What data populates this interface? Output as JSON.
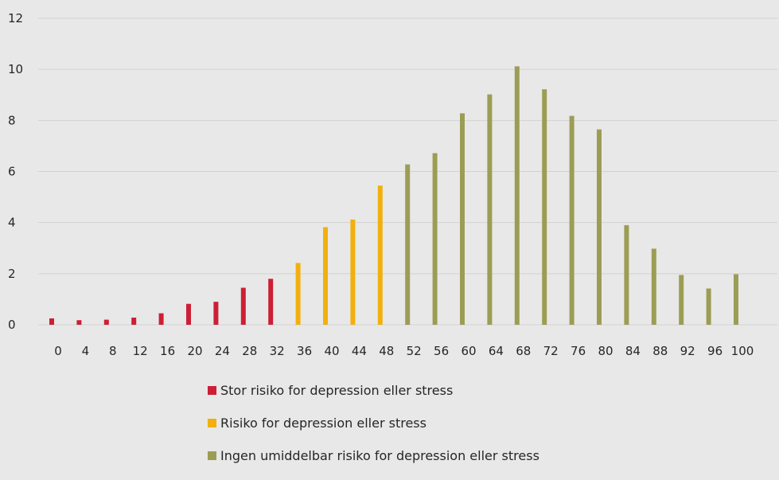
{
  "chart_data": {
    "type": "bar",
    "categories": [
      "0",
      "4",
      "8",
      "12",
      "16",
      "20",
      "24",
      "28",
      "32",
      "36",
      "40",
      "44",
      "48",
      "52",
      "56",
      "60",
      "64",
      "68",
      "72",
      "76",
      "80",
      "84",
      "88",
      "92",
      "96",
      "100"
    ],
    "values": [
      0.25,
      0.18,
      0.2,
      0.28,
      0.45,
      0.82,
      0.9,
      1.45,
      1.8,
      2.42,
      3.82,
      4.12,
      5.45,
      6.28,
      6.72,
      8.28,
      9.02,
      10.12,
      9.22,
      8.18,
      7.65,
      3.9,
      2.98,
      1.95,
      1.42,
      1.98
    ],
    "group": [
      0,
      0,
      0,
      0,
      0,
      0,
      0,
      0,
      0,
      1,
      1,
      1,
      1,
      2,
      2,
      2,
      2,
      2,
      2,
      2,
      2,
      2,
      2,
      2,
      2,
      2
    ],
    "series": [
      {
        "name": "Stor risiko for depression eller stress",
        "color": "#cc1f35"
      },
      {
        "name": "Risiko for depression eller stress",
        "color": "#f2b00f"
      },
      {
        "name": "Ingen umiddelbar risiko for depression eller stress",
        "color": "#9c9d55"
      }
    ],
    "y_ticks": [
      "0",
      "2",
      "4",
      "6",
      "8",
      "10",
      "12"
    ],
    "ylim": [
      0,
      12
    ],
    "grid": true,
    "legend_position": "bottom"
  }
}
